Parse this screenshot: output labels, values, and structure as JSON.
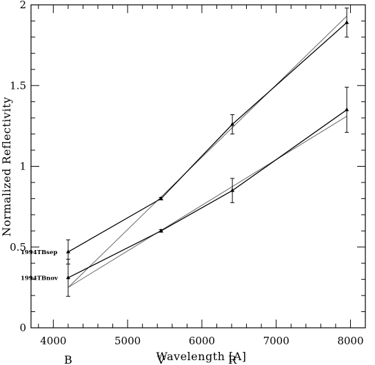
{
  "chart_data": {
    "type": "line",
    "xlabel": "Wavelength [A]",
    "ylabel": "Normalized Reflectivity",
    "xlim": [
      3700,
      8200
    ],
    "ylim": [
      0,
      2
    ],
    "xticks": [
      4000,
      5000,
      6000,
      7000,
      8000
    ],
    "yticks": [
      0,
      0.5,
      1,
      1.5,
      2
    ],
    "ytick_labels": [
      "0",
      "0.5",
      "1",
      "1.5",
      "2"
    ],
    "grid": false,
    "bands": [
      {
        "label": "B",
        "x": 4200
      },
      {
        "label": "V",
        "x": 5450
      },
      {
        "label": "R",
        "x": 6410
      }
    ],
    "series": [
      {
        "name": "1994TBsep",
        "marker": "triangle",
        "x": [
          4200,
          5450,
          6410,
          7950
        ],
        "y": [
          0.47,
          0.8,
          1.26,
          1.89
        ],
        "yerr": [
          0.075,
          0.008,
          0.06,
          0.09
        ]
      },
      {
        "name": "1994TBnov",
        "marker": "triangle",
        "x": [
          4200,
          5450,
          6410,
          7950
        ],
        "y": [
          0.31,
          0.6,
          0.85,
          1.35
        ],
        "yerr": [
          0.115,
          0.008,
          0.075,
          0.14
        ]
      }
    ],
    "fits": [
      {
        "x": [
          4200,
          7950
        ],
        "y": [
          0.25,
          1.93
        ]
      },
      {
        "x": [
          4200,
          7950
        ],
        "y": [
          0.25,
          1.31
        ]
      }
    ]
  }
}
